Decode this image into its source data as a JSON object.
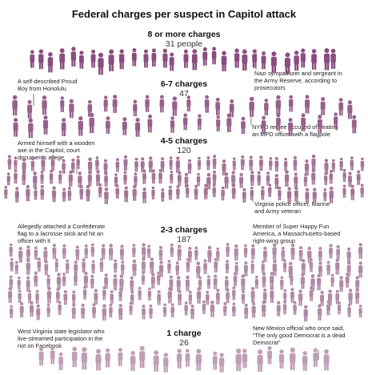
{
  "chart_data": {
    "type": "pictogram",
    "title": "Federal charges per suspect in Capitol attack",
    "groups": [
      {
        "label": "8 or more charges",
        "count": 31,
        "count_label": "31 people",
        "color": "#8a4d7f"
      },
      {
        "label": "6-7 charges",
        "count": 47,
        "count_label": "47",
        "color": "#97618c"
      },
      {
        "label": "4-5 charges",
        "count": 120,
        "count_label": "120",
        "color": "#a47598"
      },
      {
        "label": "2-3 charges",
        "count": 187,
        "count_label": "187",
        "color": "#b08aa7"
      },
      {
        "label": "1 charge",
        "count": 26,
        "count_label": "26",
        "color": "#bf9fb6"
      }
    ],
    "annotations": [
      {
        "group": 1,
        "side": "left",
        "text": [
          "A self-described Proud",
          "Boy from Honolulu"
        ]
      },
      {
        "group": 1,
        "side": "right",
        "text": [
          "Nazi sympathizer and sergeant in",
          "the Army Reserve, according to",
          "prosecutors"
        ]
      },
      {
        "group": 2,
        "side": "left",
        "text": [
          "Armed himself with a wooden",
          "axe in the Capitol, court",
          "documents allege"
        ]
      },
      {
        "group": 2,
        "side": "right",
        "text": [
          "NYPD retiree accused of beating",
          "an MPD officer with a flagpole"
        ]
      },
      {
        "group": 2,
        "side": "right",
        "text": [
          "Virginia police officer, Marine",
          "and Army veteran"
        ]
      },
      {
        "group": 3,
        "side": "left",
        "text": [
          "Allegedly attached a Confederate",
          "flag to a lacrosse stick and hit an",
          "officer with it"
        ]
      },
      {
        "group": 3,
        "side": "right",
        "text": [
          "Member of Super Happy Fun",
          "America, a Massachusetts-based",
          "right-wing group"
        ]
      },
      {
        "group": 4,
        "side": "left",
        "text": [
          "West Virginia state legislator who",
          "live-streamed participation in the",
          "riot on Facebook"
        ]
      },
      {
        "group": 4,
        "side": "right",
        "text": [
          "New Mexico official who once said,",
          "“The only good Democrat is a dead",
          "Democrat”"
        ]
      }
    ]
  }
}
